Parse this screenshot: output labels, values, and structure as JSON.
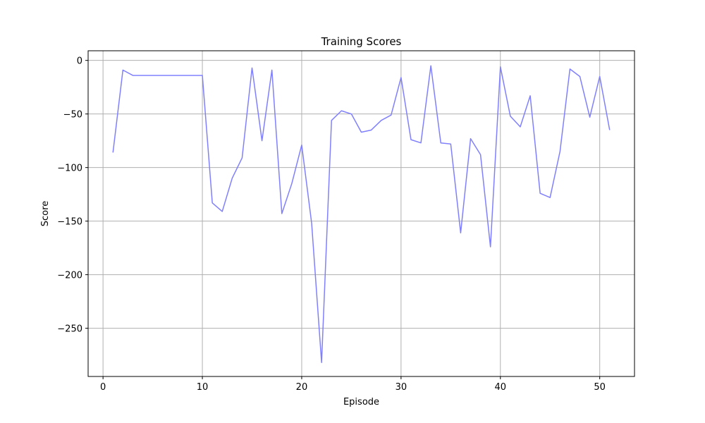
{
  "chart_data": {
    "type": "line",
    "title": "Training Scores",
    "xlabel": "Episode",
    "ylabel": "Score",
    "xlim": [
      -1.5,
      53.5
    ],
    "ylim": [
      -295,
      9
    ],
    "xticks": [
      0,
      10,
      20,
      30,
      40,
      50
    ],
    "xtick_labels": [
      "0",
      "10",
      "20",
      "30",
      "40",
      "50"
    ],
    "yticks": [
      0,
      -50,
      -100,
      -150,
      -200,
      -250
    ],
    "ytick_labels": [
      "0",
      "−50",
      "−100",
      "−150",
      "−200",
      "−250"
    ],
    "grid": true,
    "series": [
      {
        "color": "#8080ff",
        "x": [
          1,
          2,
          3,
          4,
          5,
          6,
          7,
          8,
          9,
          10,
          11,
          12,
          13,
          14,
          15,
          16,
          17,
          18,
          19,
          20,
          21,
          22,
          23,
          24,
          25,
          26,
          27,
          28,
          29,
          30,
          31,
          32,
          33,
          34,
          35,
          36,
          37,
          38,
          39,
          40,
          41,
          42,
          43,
          44,
          45,
          46,
          47,
          48,
          49,
          50,
          51
        ],
        "y": [
          -86,
          -9,
          -14,
          -14,
          -14,
          -14,
          -14,
          -14,
          -14,
          -14,
          -133,
          -141,
          -110,
          -91,
          -7,
          -75,
          -9,
          -143,
          -115,
          -79,
          -152,
          -282,
          -56,
          -47,
          -50,
          -67,
          -65,
          -56,
          -51,
          -16,
          -74,
          -77,
          -5,
          -77,
          -78,
          -161,
          -73,
          -88,
          -174,
          -6,
          -52,
          -62,
          -33,
          -124,
          -128,
          -85,
          -8,
          -15,
          -53,
          -15,
          -65
        ]
      }
    ]
  }
}
